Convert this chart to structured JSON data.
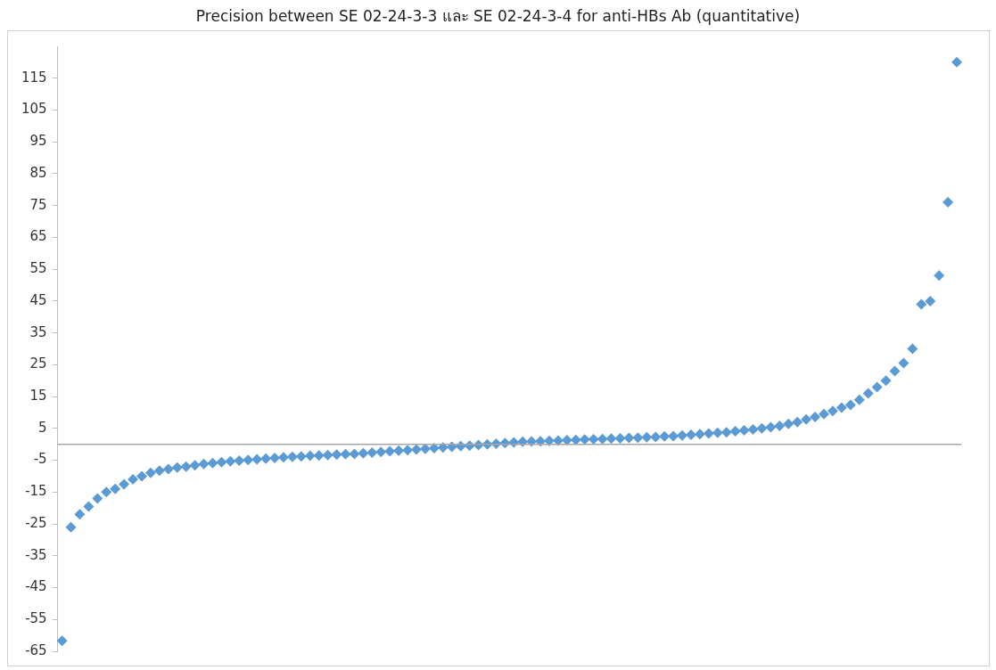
{
  "chart_data": {
    "type": "scatter",
    "title": "Precision between SE 02-24-3-3 และ SE 02-24-3-4 for anti-HBs Ab (quantitative)",
    "categories": [
      null,
      null,
      null,
      null,
      null,
      null,
      null,
      null,
      null,
      null,
      null,
      null,
      null,
      null,
      null,
      null,
      null,
      null,
      null,
      null,
      null,
      null,
      null,
      null,
      null,
      null,
      null,
      null,
      null,
      null,
      null,
      null,
      null,
      null,
      null,
      null,
      null,
      null,
      null,
      null,
      null,
      null,
      null,
      null,
      null,
      null,
      null,
      null,
      null,
      null,
      null,
      null,
      null,
      null,
      null,
      null,
      null,
      null,
      null,
      null,
      null,
      null,
      null,
      null,
      null,
      null,
      null,
      null,
      null,
      null,
      null,
      null,
      null,
      null,
      null,
      null,
      null,
      null,
      null,
      null,
      null,
      null,
      null,
      null,
      null,
      null,
      null,
      null,
      null,
      null,
      null,
      null,
      null,
      null,
      null,
      null,
      null,
      null,
      null,
      null,
      null,
      null
    ],
    "series": [
      {
        "color": "#5b9bd5",
        "values": [
          -61.7,
          -26,
          -22,
          -19.5,
          -17,
          -15,
          -14,
          -12.5,
          -11,
          -10,
          -9,
          -8.3,
          -7.8,
          -7.3,
          -7,
          -6.6,
          -6.2,
          -5.9,
          -5.6,
          -5.3,
          -5.1,
          -4.9,
          -4.7,
          -4.5,
          -4.3,
          -4.1,
          -3.9,
          -3.8,
          -3.6,
          -3.5,
          -3.4,
          -3.2,
          -3.1,
          -3,
          -2.8,
          -2.6,
          -2.4,
          -2.2,
          -2,
          -1.8,
          -1.6,
          -1.4,
          -1.2,
          -1,
          -0.8,
          -0.6,
          -0.4,
          -0.2,
          0,
          0.2,
          0.4,
          0.6,
          0.8,
          0.9,
          1,
          1.1,
          1.2,
          1.3,
          1.4,
          1.5,
          1.6,
          1.7,
          1.8,
          1.9,
          2,
          2.1,
          2.2,
          2.3,
          2.5,
          2.6,
          2.8,
          3,
          3.2,
          3.4,
          3.6,
          3.8,
          4.1,
          4.4,
          4.7,
          5,
          5.4,
          5.8,
          6.4,
          7,
          7.8,
          8.6,
          9.5,
          10.5,
          11.5,
          12.4,
          14,
          16,
          18,
          20,
          23,
          25.5,
          30,
          44,
          45,
          53,
          76,
          120
        ]
      }
    ],
    "ylim": [
      -65,
      125
    ],
    "yticks": [
      -65,
      -55,
      -45,
      -35,
      -25,
      -15,
      -5,
      5,
      15,
      25,
      35,
      45,
      55,
      65,
      75,
      85,
      95,
      105,
      115
    ],
    "ref_lines": [
      {
        "axis": "y",
        "value": 0,
        "color": "#a6a6a6"
      }
    ],
    "marker": "diamond",
    "grid": false,
    "legend": false,
    "tick_labels": "y"
  }
}
